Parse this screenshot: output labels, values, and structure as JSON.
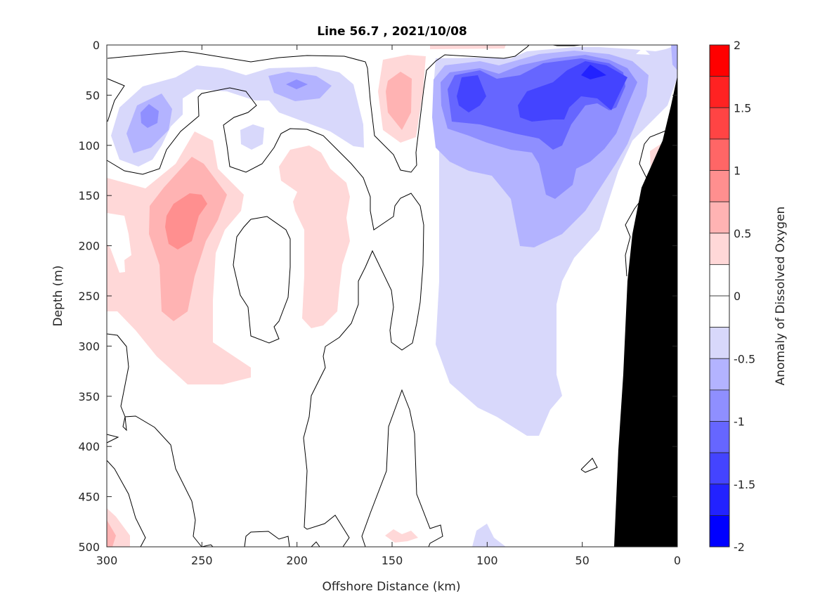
{
  "chart_data": {
    "type": "contour",
    "title": "Line 56.7 , 2021/10/08",
    "xlabel": "Offshore Distance (km)",
    "ylabel": "Depth (m)",
    "xlim": [
      300,
      0
    ],
    "ylim": [
      0,
      500
    ],
    "x_reversed": true,
    "y_reversed": true,
    "xticks": [
      "300",
      "250",
      "200",
      "150",
      "100",
      "50",
      "0"
    ],
    "yticks": [
      "0",
      "50",
      "100",
      "150",
      "200",
      "250",
      "300",
      "350",
      "400",
      "450",
      "500"
    ],
    "zero_contour": "black line",
    "topography_color": "#000000",
    "colorbar": {
      "label": "Anomaly of Dissolved Oxygen",
      "range": [
        -2,
        2
      ],
      "step": 0.25,
      "ticks": [
        "2",
        "1.5",
        "1",
        "0.5",
        "0",
        "-0.5",
        "-1",
        "-1.5",
        "-2"
      ],
      "band_colors_top_to_bottom": [
        "#ff0000",
        "#ff2222",
        "#ff4444",
        "#ff6666",
        "#ff8f8f",
        "#ffb3b3",
        "#ffd8d8",
        "#ffffff",
        "#ffffff",
        "#d8d8fb",
        "#b3b3ff",
        "#8f8fff",
        "#6666ff",
        "#4444ff",
        "#2222ff",
        "#0000ff"
      ]
    }
  }
}
